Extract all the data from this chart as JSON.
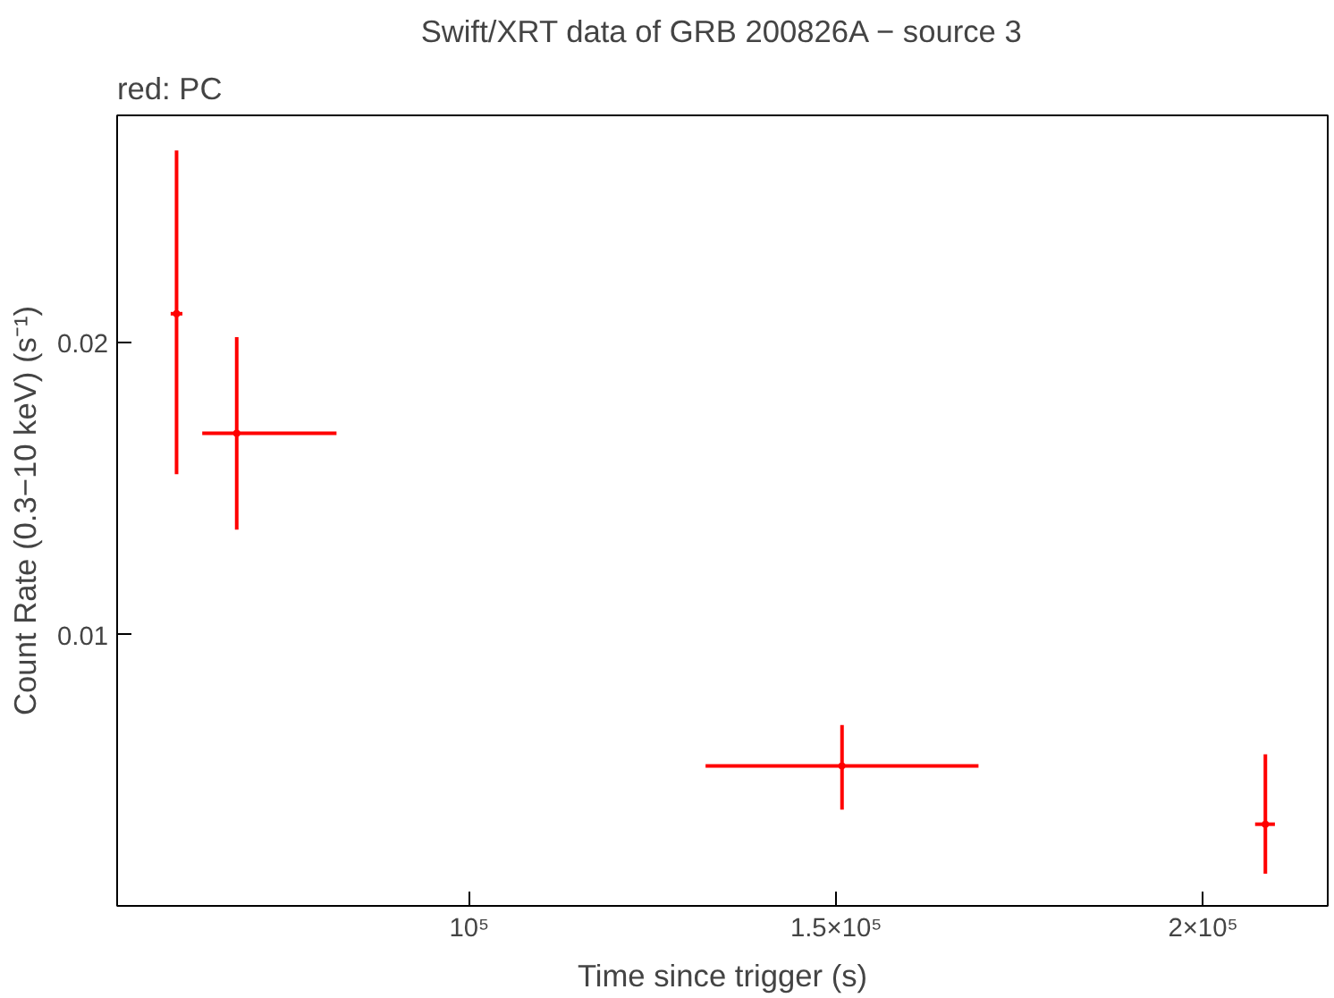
{
  "chart_data": {
    "type": "scatter",
    "title": "Swift/XRT data of GRB 200826A − source 3",
    "annotations": [
      "red: PC"
    ],
    "xlabel": "Time since trigger (s)",
    "ylabel": "Count Rate (0.3−10 keV) (s⁻¹)",
    "marker": "circle",
    "grid": false,
    "x": [
      60100,
      68300,
      150800,
      208500
    ],
    "series": [
      {
        "color": "#ff0000",
        "values": [
          0.021,
          0.0169,
          0.0055,
          0.0035
        ],
        "errors": [
          [
            0.0155,
            0.0266
          ],
          [
            0.0136,
            0.0202
          ],
          [
            0.004,
            0.0069
          ],
          [
            0.0018,
            0.0059
          ]
        ],
        "xerrors": [
          [
            59300,
            60900
          ],
          [
            63600,
            81900
          ],
          [
            132200,
            169400
          ],
          [
            207100,
            209800
          ]
        ]
      }
    ],
    "xlim": [
      52000,
      217000
    ],
    "ylim": [
      0.0007,
      0.0278
    ],
    "xticks": [
      {
        "value": 100000,
        "label": "10⁵"
      },
      {
        "value": 150000,
        "label": "1.5×10⁵"
      },
      {
        "value": 200000,
        "label": "2×10⁵"
      }
    ],
    "yticks": [
      0.01,
      0.02
    ]
  }
}
